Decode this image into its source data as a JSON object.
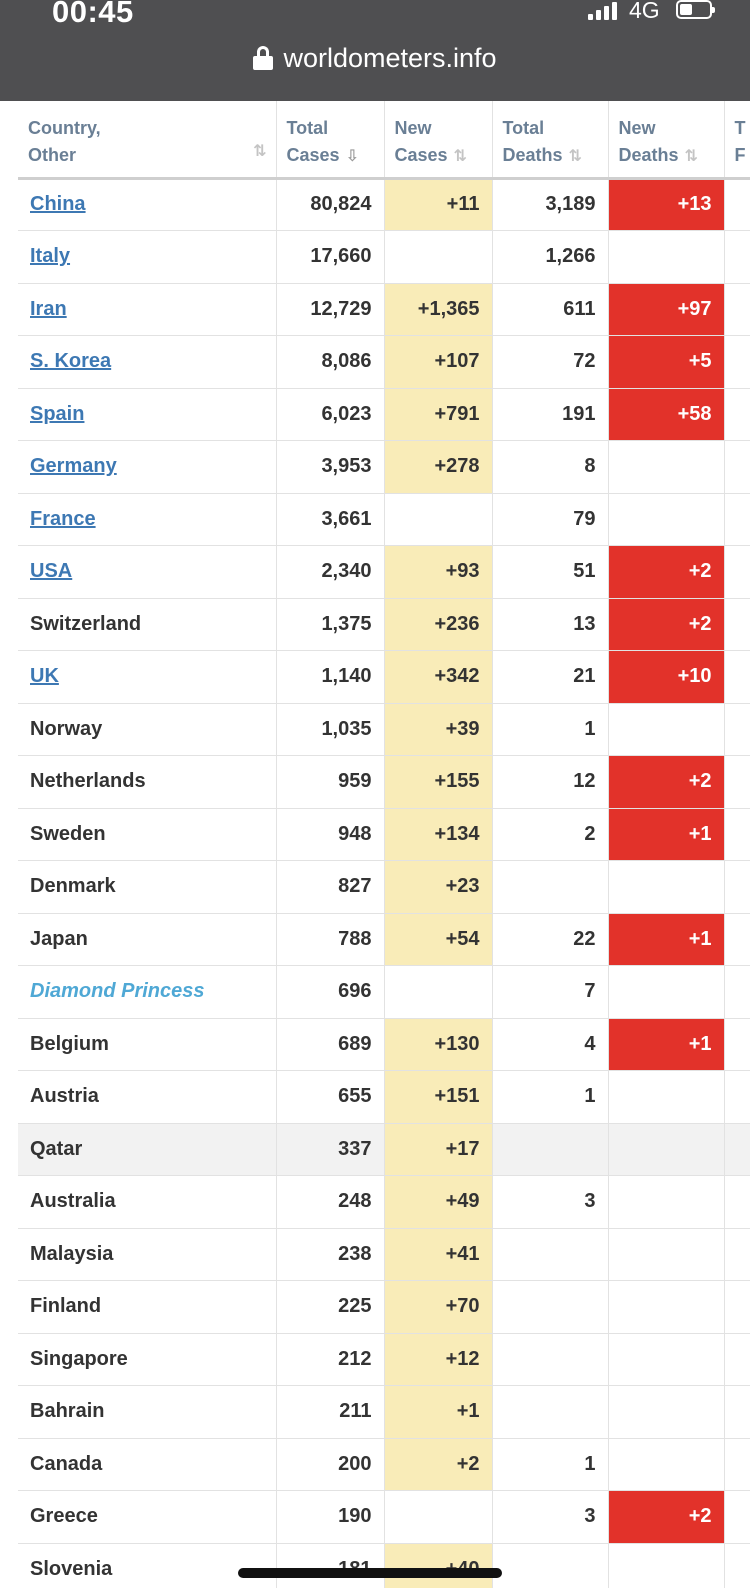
{
  "status_bar": {
    "time": "00:45",
    "network": "4G"
  },
  "address_bar": {
    "url": "worldometers.info"
  },
  "table": {
    "headers": {
      "country": [
        "Country,",
        "Other"
      ],
      "total_cases": [
        "Total",
        "Cases"
      ],
      "new_cases": [
        "New",
        "Cases"
      ],
      "total_deaths": [
        "Total",
        "Deaths"
      ],
      "new_deaths": [
        "New",
        "Deaths"
      ],
      "next": [
        "T",
        "F"
      ]
    },
    "sort_icon": "⇅",
    "sort_icon_active": "⇩",
    "rows": [
      {
        "country": "China",
        "link": true,
        "total_cases": "80,824",
        "new_cases": "+11",
        "total_deaths": "3,189",
        "new_deaths": "+13"
      },
      {
        "country": "Italy",
        "link": true,
        "total_cases": "17,660",
        "new_cases": "",
        "total_deaths": "1,266",
        "new_deaths": ""
      },
      {
        "country": "Iran",
        "link": true,
        "total_cases": "12,729",
        "new_cases": "+1,365",
        "total_deaths": "611",
        "new_deaths": "+97"
      },
      {
        "country": "S. Korea",
        "link": true,
        "total_cases": "8,086",
        "new_cases": "+107",
        "total_deaths": "72",
        "new_deaths": "+5"
      },
      {
        "country": "Spain",
        "link": true,
        "total_cases": "6,023",
        "new_cases": "+791",
        "total_deaths": "191",
        "new_deaths": "+58"
      },
      {
        "country": "Germany",
        "link": true,
        "total_cases": "3,953",
        "new_cases": "+278",
        "total_deaths": "8",
        "new_deaths": ""
      },
      {
        "country": "France",
        "link": true,
        "total_cases": "3,661",
        "new_cases": "",
        "total_deaths": "79",
        "new_deaths": ""
      },
      {
        "country": "USA",
        "link": true,
        "total_cases": "2,340",
        "new_cases": "+93",
        "total_deaths": "51",
        "new_deaths": "+2"
      },
      {
        "country": "Switzerland",
        "link": false,
        "total_cases": "1,375",
        "new_cases": "+236",
        "total_deaths": "13",
        "new_deaths": "+2"
      },
      {
        "country": "UK",
        "link": true,
        "total_cases": "1,140",
        "new_cases": "+342",
        "total_deaths": "21",
        "new_deaths": "+10"
      },
      {
        "country": "Norway",
        "link": false,
        "total_cases": "1,035",
        "new_cases": "+39",
        "total_deaths": "1",
        "new_deaths": ""
      },
      {
        "country": "Netherlands",
        "link": false,
        "total_cases": "959",
        "new_cases": "+155",
        "total_deaths": "12",
        "new_deaths": "+2"
      },
      {
        "country": "Sweden",
        "link": false,
        "total_cases": "948",
        "new_cases": "+134",
        "total_deaths": "2",
        "new_deaths": "+1"
      },
      {
        "country": "Denmark",
        "link": false,
        "total_cases": "827",
        "new_cases": "+23",
        "total_deaths": "",
        "new_deaths": ""
      },
      {
        "country": "Japan",
        "link": false,
        "total_cases": "788",
        "new_cases": "+54",
        "total_deaths": "22",
        "new_deaths": "+1"
      },
      {
        "country": "Diamond Princess",
        "link": false,
        "cruise": true,
        "total_cases": "696",
        "new_cases": "",
        "total_deaths": "7",
        "new_deaths": ""
      },
      {
        "country": "Belgium",
        "link": false,
        "total_cases": "689",
        "new_cases": "+130",
        "total_deaths": "4",
        "new_deaths": "+1"
      },
      {
        "country": "Austria",
        "link": false,
        "total_cases": "655",
        "new_cases": "+151",
        "total_deaths": "1",
        "new_deaths": ""
      },
      {
        "country": "Qatar",
        "link": false,
        "highlight": true,
        "total_cases": "337",
        "new_cases": "+17",
        "total_deaths": "",
        "new_deaths": ""
      },
      {
        "country": "Australia",
        "link": false,
        "total_cases": "248",
        "new_cases": "+49",
        "total_deaths": "3",
        "new_deaths": ""
      },
      {
        "country": "Malaysia",
        "link": false,
        "total_cases": "238",
        "new_cases": "+41",
        "total_deaths": "",
        "new_deaths": ""
      },
      {
        "country": "Finland",
        "link": false,
        "total_cases": "225",
        "new_cases": "+70",
        "total_deaths": "",
        "new_deaths": ""
      },
      {
        "country": "Singapore",
        "link": false,
        "total_cases": "212",
        "new_cases": "+12",
        "total_deaths": "",
        "new_deaths": ""
      },
      {
        "country": "Bahrain",
        "link": false,
        "total_cases": "211",
        "new_cases": "+1",
        "total_deaths": "",
        "new_deaths": ""
      },
      {
        "country": "Canada",
        "link": false,
        "total_cases": "200",
        "new_cases": "+2",
        "total_deaths": "1",
        "new_deaths": ""
      },
      {
        "country": "Greece",
        "link": false,
        "total_cases": "190",
        "new_cases": "",
        "total_deaths": "3",
        "new_deaths": "+2"
      },
      {
        "country": "Slovenia",
        "link": false,
        "total_cases": "181",
        "new_cases": "+40",
        "total_deaths": "",
        "new_deaths": ""
      }
    ]
  },
  "colors": {
    "top_bar": "#4f4f51",
    "new_cases_bg": "#f9ecb8",
    "new_deaths_bg": "#e2322a",
    "country_link": "#3d78b3",
    "header_text": "#6a7f95"
  }
}
